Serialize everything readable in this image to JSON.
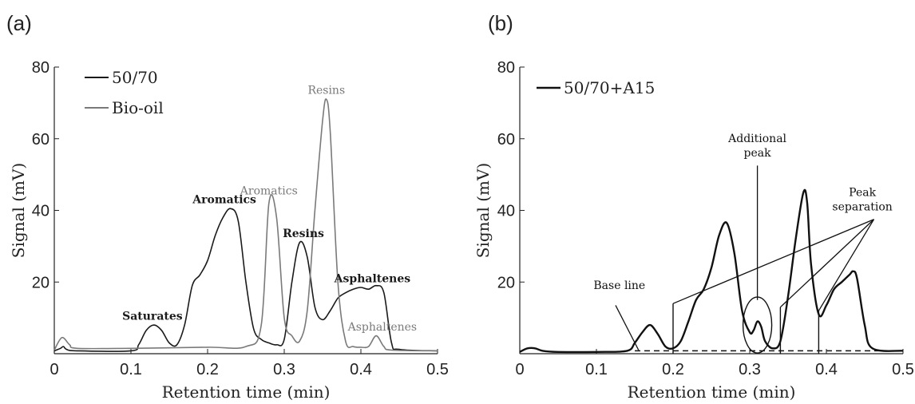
{
  "chart_data": [
    {
      "type": "line",
      "panel_label": "(a)",
      "xlabel": "Retention time (min)",
      "ylabel": "Signal (mV)",
      "xlim": [
        0,
        0.5
      ],
      "ylim": [
        0,
        80
      ],
      "xticks": [
        "0",
        "0.1",
        "0.2",
        "0.3",
        "0.4",
        "0.5"
      ],
      "yticks": [
        "20",
        "40",
        "60",
        "80"
      ],
      "grid": false,
      "legend_position": "top-left",
      "series": [
        {
          "name": "50/70",
          "color": "#1a1a1a",
          "x": [
            0,
            0.008,
            0.012,
            0.016,
            0.03,
            0.1,
            0.11,
            0.12,
            0.13,
            0.14,
            0.15,
            0.16,
            0.17,
            0.18,
            0.19,
            0.2,
            0.21,
            0.22,
            0.23,
            0.24,
            0.25,
            0.26,
            0.27,
            0.28,
            0.29,
            0.3,
            0.31,
            0.32,
            0.33,
            0.34,
            0.35,
            0.36,
            0.37,
            0.38,
            0.39,
            0.4,
            0.41,
            0.42,
            0.43,
            0.44,
            0.45,
            0.5
          ],
          "y": [
            0.8,
            1.5,
            2.0,
            1.2,
            0.8,
            0.8,
            2.5,
            6.5,
            8.0,
            6.5,
            3.0,
            2.5,
            8.0,
            19.0,
            22.0,
            26.0,
            33.0,
            38.0,
            40.5,
            37.0,
            20.0,
            7.0,
            4.0,
            3.0,
            2.5,
            4.0,
            20.0,
            31.0,
            27.0,
            13.0,
            9.5,
            12.0,
            15.5,
            17.0,
            18.0,
            18.5,
            18.0,
            19.0,
            17.0,
            3.0,
            1.2,
            0.8
          ]
        },
        {
          "name": "Bio-oil",
          "color": "#7a7a7a",
          "x": [
            0,
            0.01,
            0.02,
            0.03,
            0.1,
            0.2,
            0.25,
            0.27,
            0.28,
            0.29,
            0.3,
            0.31,
            0.32,
            0.33,
            0.34,
            0.35,
            0.355,
            0.36,
            0.37,
            0.38,
            0.39,
            0.4,
            0.41,
            0.42,
            0.43,
            0.44,
            0.5
          ],
          "y": [
            1.0,
            4.5,
            2.5,
            1.5,
            1.5,
            1.8,
            2.0,
            8.0,
            42.0,
            38.0,
            10.0,
            5.0,
            3.5,
            12.0,
            40.0,
            65.0,
            71.0,
            62.0,
            20.0,
            3.5,
            2.0,
            1.8,
            2.0,
            5.0,
            2.0,
            1.0,
            0.8
          ]
        }
      ],
      "annotations": [
        {
          "text": "Resins",
          "x": 0.355,
          "y": 72.5,
          "color": "#7a7a7a",
          "bold": false
        },
        {
          "text": "Aromatics",
          "x": 0.28,
          "y": 44.5,
          "color": "#7a7a7a",
          "bold": false
        },
        {
          "text": "Aromatics",
          "x": 0.222,
          "y": 42.0,
          "color": "#1a1a1a",
          "bold": true
        },
        {
          "text": "Resins",
          "x": 0.325,
          "y": 32.5,
          "color": "#1a1a1a",
          "bold": true
        },
        {
          "text": "Saturates",
          "x": 0.128,
          "y": 9.5,
          "color": "#1a1a1a",
          "bold": true
        },
        {
          "text": "Asphaltenes",
          "x": 0.415,
          "y": 20.0,
          "color": "#1a1a1a",
          "bold": true
        },
        {
          "text": "Asphaltenes",
          "x": 0.428,
          "y": 6.5,
          "color": "#7a7a7a",
          "bold": false
        }
      ]
    },
    {
      "type": "line",
      "panel_label": "(b)",
      "xlabel": "Retention time (min)",
      "ylabel": "Signal (mV)",
      "xlim": [
        0,
        0.5
      ],
      "ylim": [
        0,
        80
      ],
      "xticks": [
        "0",
        "0.1",
        "0.2",
        "0.3",
        "0.4",
        "0.5"
      ],
      "yticks": [
        "20",
        "40",
        "60",
        "80"
      ],
      "grid": false,
      "legend_position": "top-left",
      "series": [
        {
          "name": "50/70+A15",
          "color": "#111111",
          "x": [
            0,
            0.01,
            0.02,
            0.03,
            0.05,
            0.1,
            0.14,
            0.15,
            0.16,
            0.17,
            0.18,
            0.19,
            0.2,
            0.21,
            0.22,
            0.23,
            0.24,
            0.25,
            0.26,
            0.27,
            0.28,
            0.29,
            0.3,
            0.305,
            0.31,
            0.315,
            0.32,
            0.33,
            0.34,
            0.35,
            0.36,
            0.37,
            0.375,
            0.38,
            0.39,
            0.4,
            0.41,
            0.42,
            0.43,
            0.435,
            0.44,
            0.45,
            0.46,
            0.5
          ],
          "y": [
            0.5,
            1.5,
            1.5,
            0.8,
            0.5,
            0.5,
            0.8,
            3.0,
            6.0,
            8.0,
            5.5,
            2.0,
            1.5,
            3.5,
            9.0,
            15.0,
            18.0,
            24.0,
            33.0,
            36.5,
            28.0,
            12.0,
            6.0,
            6.5,
            9.0,
            7.5,
            3.5,
            1.5,
            3.5,
            16.0,
            32.0,
            45.0,
            42.0,
            25.0,
            11.0,
            13.5,
            18.0,
            20.0,
            22.0,
            23.0,
            21.0,
            8.0,
            1.5,
            0.8
          ]
        }
      ],
      "baseline": {
        "y": 0.8,
        "x_range": [
          0.15,
          0.5
        ]
      },
      "markers": [
        {
          "x": 0.2,
          "y_top": 14.0
        },
        {
          "x": 0.34,
          "y_top": 13.0
        },
        {
          "x": 0.39,
          "y_top": 12.0
        }
      ],
      "annotations": [
        {
          "text": "Additional peak",
          "x": 0.31,
          "y": 59.0
        },
        {
          "text": "Peak separation",
          "x": 0.447,
          "y": 44.0
        },
        {
          "text": "Base line",
          "x": 0.13,
          "y": 18.0
        }
      ]
    }
  ]
}
